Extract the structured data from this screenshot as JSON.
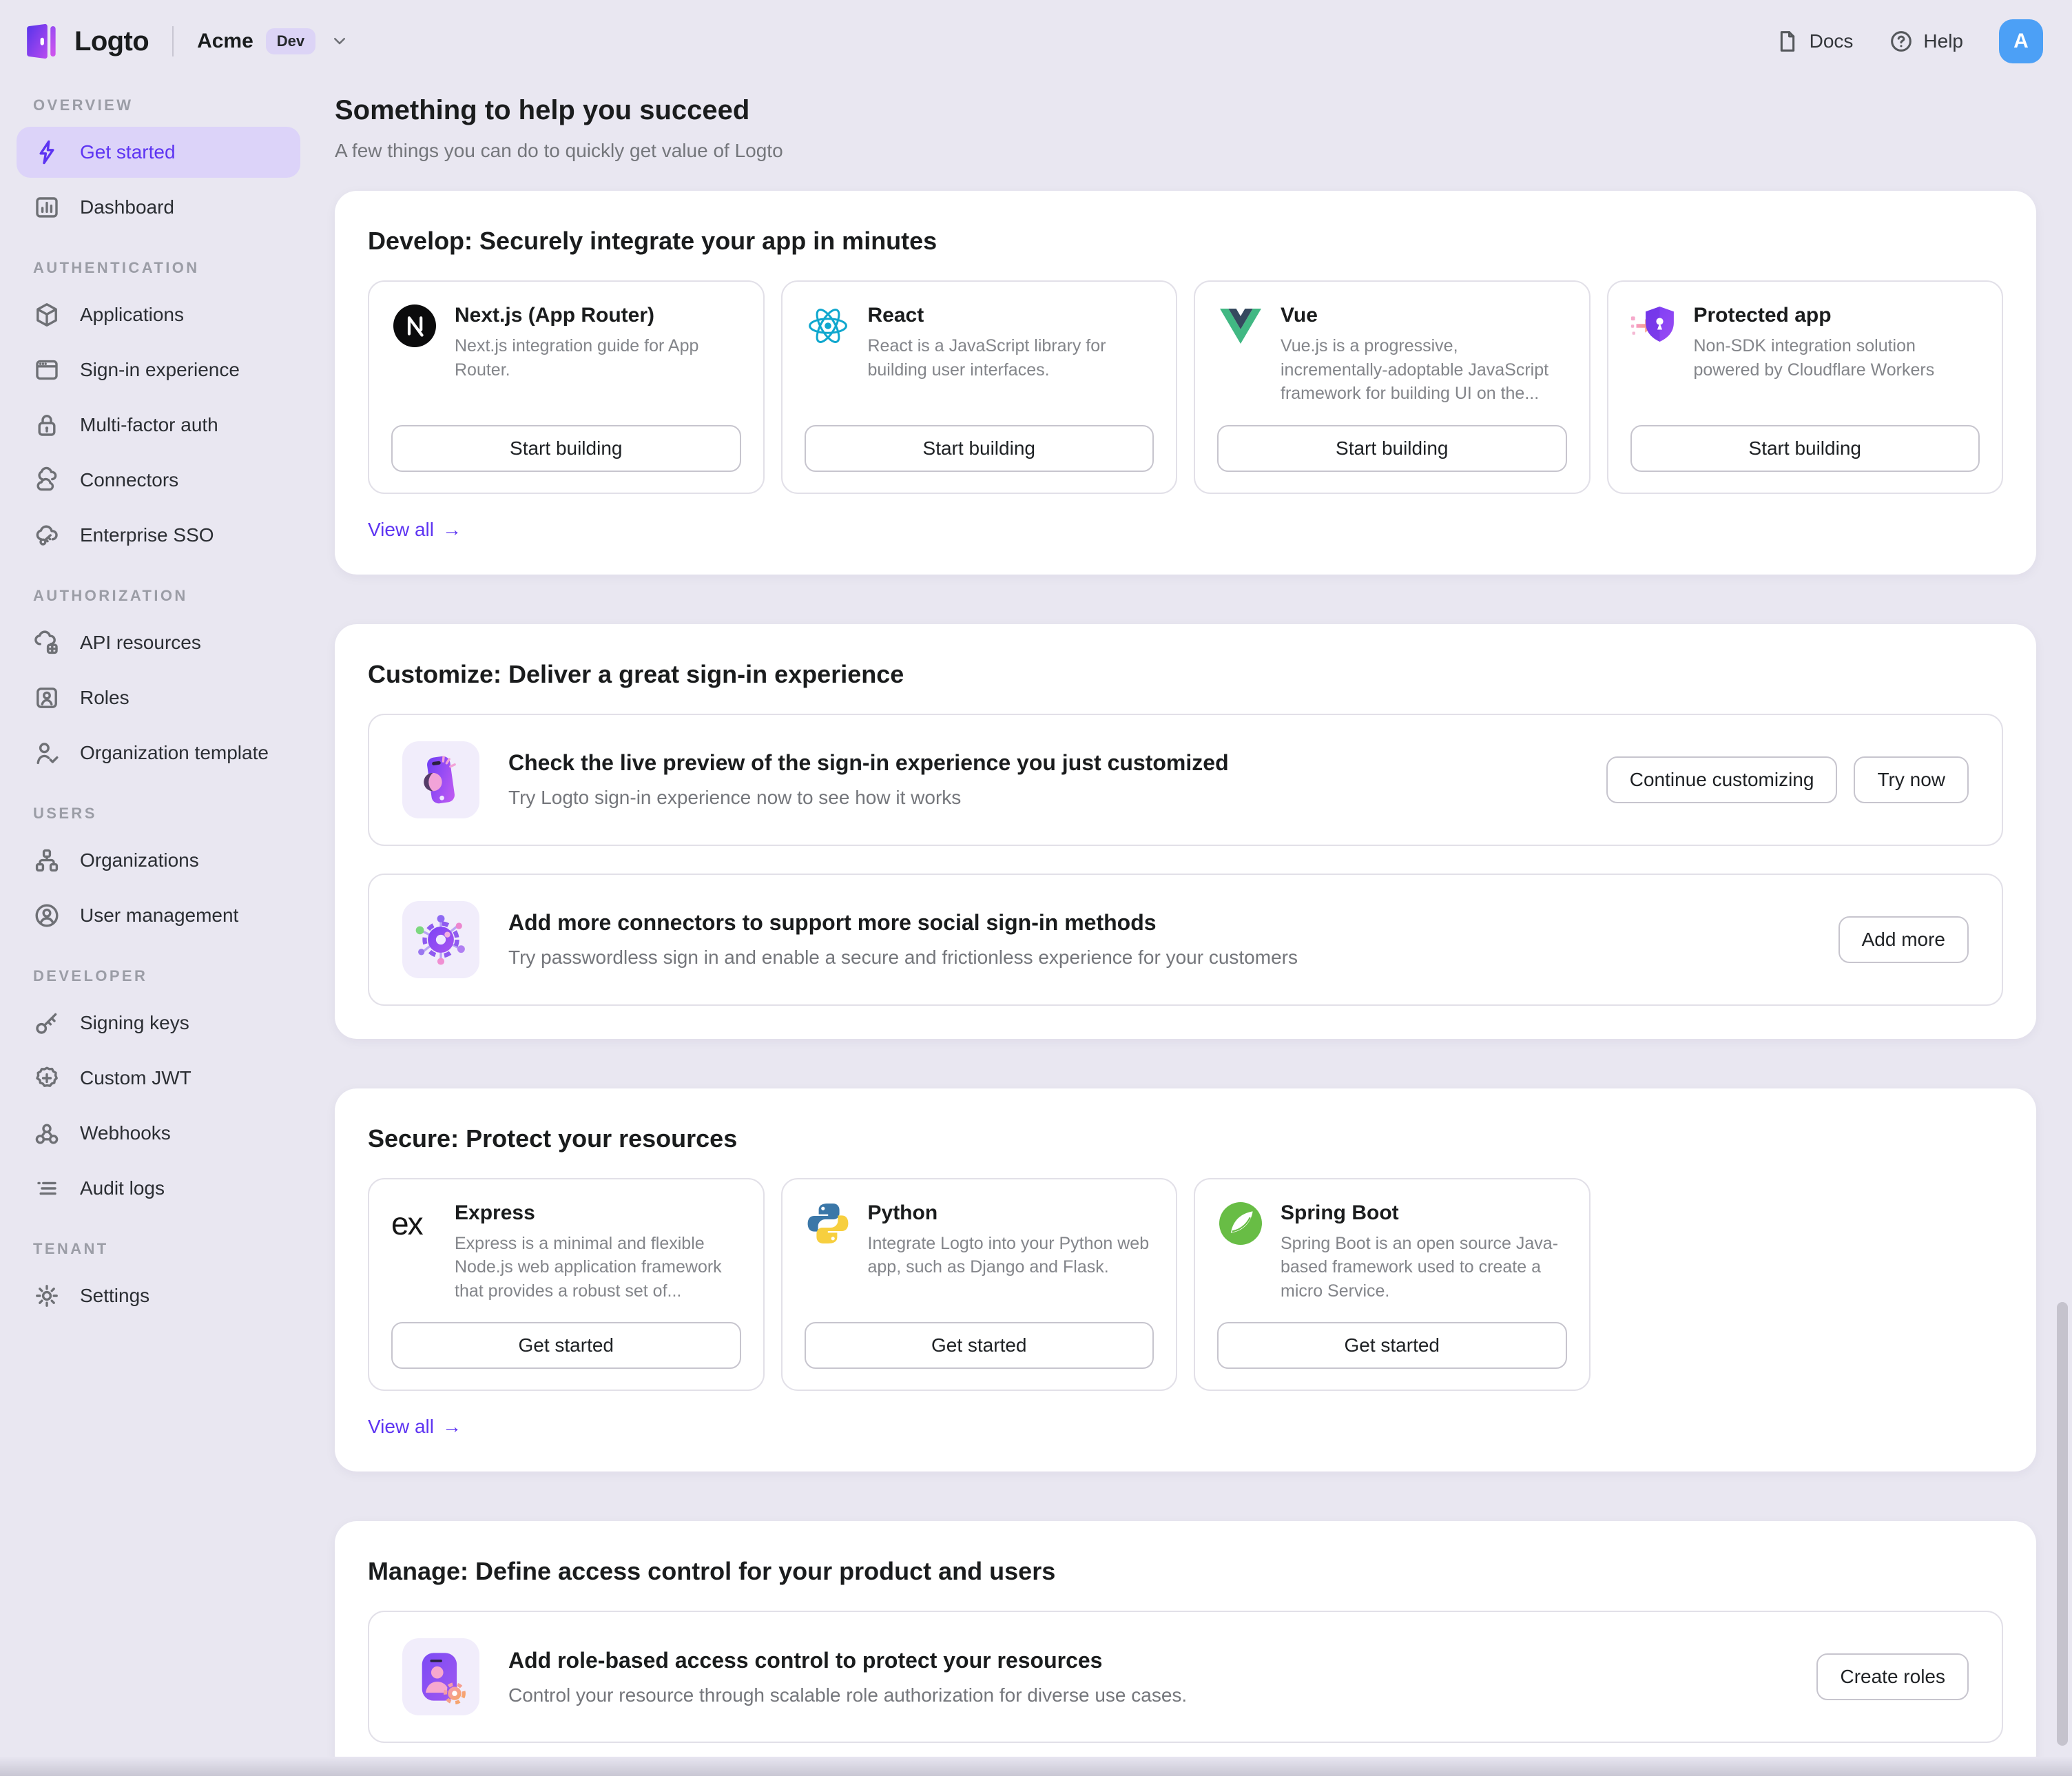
{
  "colors": {
    "accent": "#5D34F2",
    "active_item_bg": "#DCD3F9",
    "avatar_bg": "#4CA0F6",
    "page_bg": "#E9E7F1"
  },
  "brand": {
    "name": "Logto",
    "tenant": "Acme",
    "env_badge": "Dev"
  },
  "topbar": {
    "docs_label": "Docs",
    "help_label": "Help",
    "avatar_initial": "A"
  },
  "page": {
    "title": "Something to help you succeed",
    "subtitle": "A few things you can do to quickly get value of Logto"
  },
  "sidebar": {
    "sections": [
      {
        "label": "OVERVIEW",
        "items": [
          {
            "label": "Get started",
            "icon": "lightning-icon",
            "active": true
          },
          {
            "label": "Dashboard",
            "icon": "bar-chart-icon"
          }
        ]
      },
      {
        "label": "AUTHENTICATION",
        "items": [
          {
            "label": "Applications",
            "icon": "cube-icon"
          },
          {
            "label": "Sign-in experience",
            "icon": "browser-icon"
          },
          {
            "label": "Multi-factor auth",
            "icon": "lock-icon"
          },
          {
            "label": "Connectors",
            "icon": "clouds-icon"
          },
          {
            "label": "Enterprise SSO",
            "icon": "cloud-key-icon"
          }
        ]
      },
      {
        "label": "AUTHORIZATION",
        "items": [
          {
            "label": "API resources",
            "icon": "cloud-box-icon"
          },
          {
            "label": "Roles",
            "icon": "id-card-icon"
          },
          {
            "label": "Organization template",
            "icon": "person-check-icon"
          }
        ]
      },
      {
        "label": "USERS",
        "items": [
          {
            "label": "Organizations",
            "icon": "org-chart-icon"
          },
          {
            "label": "User management",
            "icon": "person-circle-icon"
          }
        ]
      },
      {
        "label": "DEVELOPER",
        "items": [
          {
            "label": "Signing keys",
            "icon": "key-icon"
          },
          {
            "label": "Custom JWT",
            "icon": "jwt-badge-icon"
          },
          {
            "label": "Webhooks",
            "icon": "webhook-icon"
          },
          {
            "label": "Audit logs",
            "icon": "list-icon"
          }
        ]
      },
      {
        "label": "TENANT",
        "items": [
          {
            "label": "Settings",
            "icon": "gear-icon"
          }
        ]
      }
    ]
  },
  "sections": [
    {
      "id": "develop",
      "title": "Develop: Securely integrate your app in minutes",
      "type": "cards",
      "view_all": "View all",
      "cards": [
        {
          "name": "Next.js (App Router)",
          "icon": "nextjs-logo",
          "description": "Next.js integration guide for App Router.",
          "button": "Start building"
        },
        {
          "name": "React",
          "icon": "react-logo",
          "description": "React is a JavaScript library for building user interfaces.",
          "button": "Start building"
        },
        {
          "name": "Vue",
          "icon": "vue-logo",
          "description": "Vue.js is a progressive, incrementally-adoptable JavaScript framework for building UI on the...",
          "button": "Start building"
        },
        {
          "name": "Protected app",
          "icon": "shield-logo",
          "description": "Non-SDK integration solution powered by Cloudflare Workers",
          "button": "Start building"
        }
      ]
    },
    {
      "id": "customize",
      "title": "Customize: Deliver a great sign-in experience",
      "type": "rows",
      "rows": [
        {
          "icon": "phone-preview-illustration",
          "title": "Check the live preview of the sign-in experience you just customized",
          "subtitle": "Try Logto sign-in experience now to see how it works",
          "buttons": [
            "Continue customizing",
            "Try now"
          ]
        },
        {
          "icon": "connector-hub-illustration",
          "title": "Add more connectors to support more social sign-in methods",
          "subtitle": "Try passwordless sign in and enable a secure and frictionless experience for your customers",
          "buttons": [
            "Add more"
          ]
        }
      ]
    },
    {
      "id": "secure",
      "title": "Secure: Protect your resources",
      "type": "cards",
      "view_all": "View all",
      "cards": [
        {
          "name": "Express",
          "icon": "express-logo",
          "description": "Express is a minimal and flexible Node.js web application framework that provides a robust set of...",
          "button": "Get started"
        },
        {
          "name": "Python",
          "icon": "python-logo",
          "description": "Integrate Logto into your Python web app, such as Django and Flask.",
          "button": "Get started"
        },
        {
          "name": "Spring Boot",
          "icon": "spring-logo",
          "description": "Spring Boot is an open source Java-based framework used to create a micro Service.",
          "button": "Get started"
        }
      ]
    },
    {
      "id": "manage",
      "title": "Manage: Define access control for your product and users",
      "type": "rows",
      "rows": [
        {
          "icon": "rbac-illustration",
          "title": "Add role-based access control to protect your resources",
          "subtitle": "Control your resource through scalable role authorization for diverse use cases.",
          "buttons": [
            "Create roles"
          ]
        }
      ]
    }
  ]
}
